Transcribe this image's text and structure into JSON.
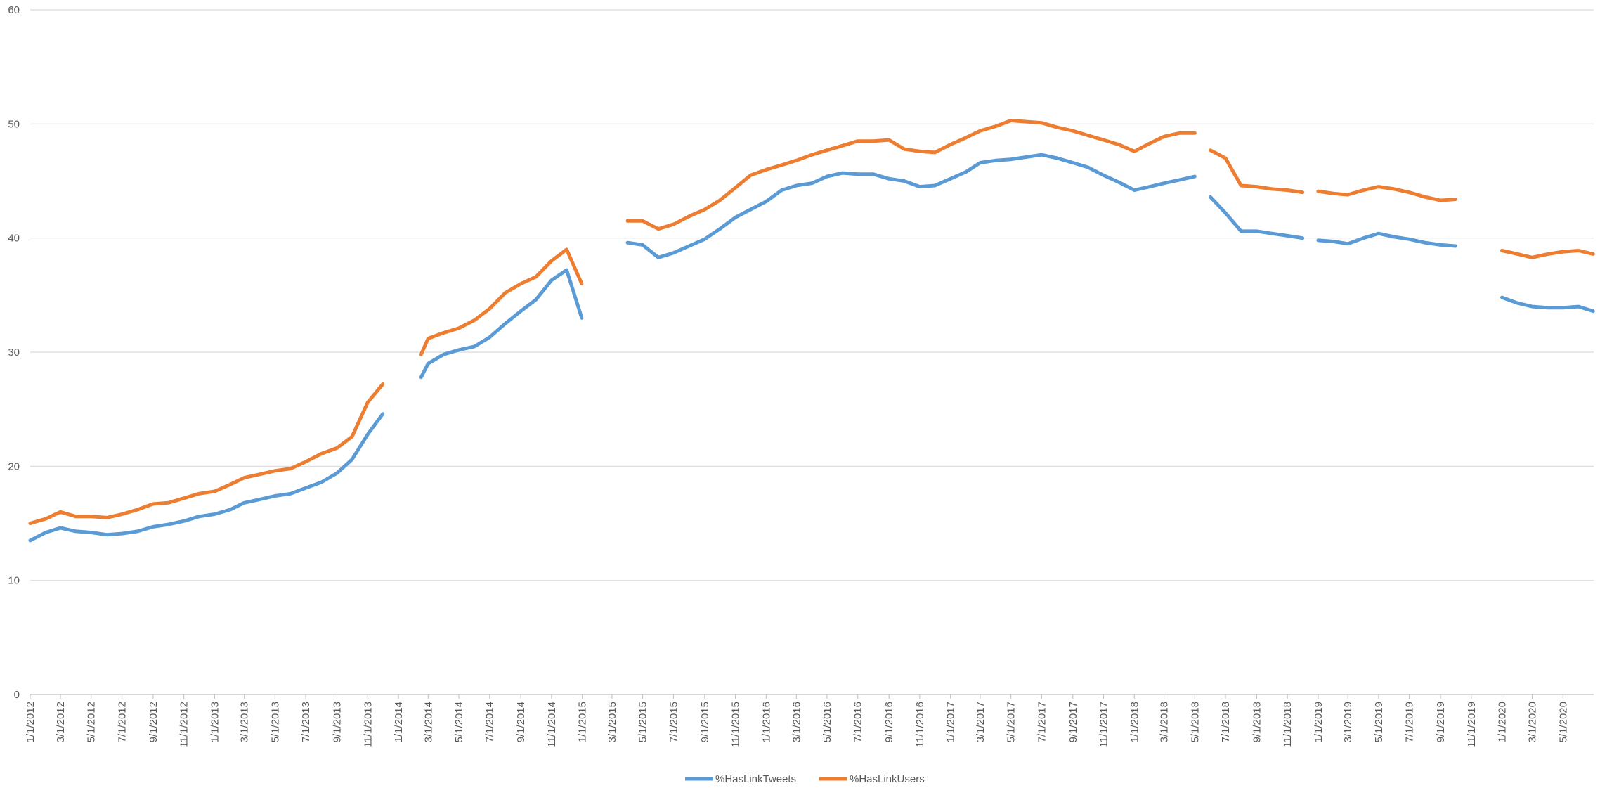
{
  "chart_data": {
    "type": "line",
    "title": "",
    "xlabel": "",
    "ylabel": "",
    "ylim": [
      0,
      60
    ],
    "yticks": [
      0,
      10,
      20,
      30,
      40,
      50,
      60
    ],
    "grid": "horizontal",
    "legend_position": "bottom-center",
    "x_tick_labels": [
      "1/1/2012",
      "3/1/2012",
      "5/1/2012",
      "7/1/2012",
      "9/1/2012",
      "11/1/2012",
      "1/1/2013",
      "3/1/2013",
      "5/1/2013",
      "7/1/2013",
      "9/1/2013",
      "11/1/2013",
      "1/1/2014",
      "3/1/2014",
      "5/1/2014",
      "7/1/2014",
      "9/1/2014",
      "11/1/2014",
      "1/1/2015",
      "3/1/2015",
      "5/1/2015",
      "7/1/2015",
      "9/1/2015",
      "11/1/2015",
      "1/1/2016",
      "3/1/2016",
      "5/1/2016",
      "7/1/2016",
      "9/1/2016",
      "11/1/2016",
      "1/1/2017",
      "3/1/2017",
      "5/1/2017",
      "7/1/2017",
      "9/1/2017",
      "11/1/2017",
      "1/1/2018",
      "3/1/2018",
      "5/1/2018",
      "7/1/2018",
      "9/1/2018",
      "11/1/2018",
      "1/1/2019",
      "3/1/2019",
      "5/1/2019",
      "7/1/2019",
      "9/1/2019",
      "11/1/2019",
      "1/1/2020",
      "3/1/2020",
      "5/1/2020"
    ],
    "series": [
      {
        "name": "%HasLinkTweets",
        "color": "#5B9BD5",
        "x": [
          "1/1/2012",
          "2/1/2012",
          "3/1/2012",
          "4/1/2012",
          "5/1/2012",
          "6/1/2012",
          "7/1/2012",
          "8/1/2012",
          "9/1/2012",
          "10/1/2012",
          "11/1/2012",
          "12/1/2012",
          "1/1/2013",
          "2/1/2013",
          "3/1/2013",
          "4/1/2013",
          "5/1/2013",
          "6/1/2013",
          "7/1/2013",
          "8/1/2013",
          "9/1/2013",
          "10/1/2013",
          "11/1/2013",
          "12/1/2013",
          null,
          "2/15/2014",
          "3/1/2014",
          "4/1/2014",
          "5/1/2014",
          "6/1/2014",
          "7/1/2014",
          "8/1/2014",
          "9/1/2014",
          "10/1/2014",
          "11/1/2014",
          "12/1/2014",
          "12/31/2014",
          null,
          "4/1/2015",
          "5/1/2015",
          "6/1/2015",
          "7/1/2015",
          "8/1/2015",
          "9/1/2015",
          "10/1/2015",
          "11/1/2015",
          "12/1/2015",
          "1/1/2016",
          "2/1/2016",
          "3/1/2016",
          "4/1/2016",
          "5/1/2016",
          "6/1/2016",
          "7/1/2016",
          "8/1/2016",
          "9/1/2016",
          "10/1/2016",
          "11/1/2016",
          "12/1/2016",
          "1/1/2017",
          "2/1/2017",
          "3/1/2017",
          "4/1/2017",
          "5/1/2017",
          "6/1/2017",
          "7/1/2017",
          "8/1/2017",
          "9/1/2017",
          "10/1/2017",
          "11/1/2017",
          "12/1/2017",
          "1/1/2018",
          "2/1/2018",
          "3/1/2018",
          "4/1/2018",
          "5/1/2018",
          null,
          "6/1/2018",
          "7/1/2018",
          "8/1/2018",
          "9/1/2018",
          "10/1/2018",
          "11/1/2018",
          "12/1/2018",
          null,
          "1/1/2019",
          "2/1/2019",
          "3/1/2019",
          "4/1/2019",
          "5/1/2019",
          "6/1/2019",
          "7/1/2019",
          "8/1/2019",
          "9/1/2019",
          "10/1/2019",
          null,
          "1/1/2020",
          "2/1/2020",
          "3/1/2020",
          "4/1/2020",
          "5/1/2020",
          "6/1/2020",
          "6/30/2020"
        ],
        "values": [
          13.5,
          14.2,
          14.6,
          14.3,
          14.2,
          14.0,
          14.1,
          14.3,
          14.7,
          14.9,
          15.2,
          15.6,
          15.8,
          16.2,
          16.8,
          17.1,
          17.4,
          17.6,
          18.1,
          18.6,
          19.4,
          20.6,
          22.8,
          24.6,
          null,
          27.8,
          29.0,
          29.8,
          30.2,
          30.5,
          31.3,
          32.5,
          33.6,
          34.6,
          36.3,
          37.2,
          33.0,
          null,
          39.6,
          39.4,
          38.3,
          38.7,
          39.3,
          39.9,
          40.8,
          41.8,
          42.5,
          43.2,
          44.2,
          44.6,
          44.8,
          45.4,
          45.7,
          45.6,
          45.6,
          45.2,
          45.0,
          44.5,
          44.6,
          45.2,
          45.8,
          46.6,
          46.8,
          46.9,
          47.1,
          47.3,
          47.0,
          46.6,
          46.2,
          45.5,
          44.9,
          44.2,
          44.5,
          44.8,
          45.1,
          45.4,
          null,
          43.6,
          42.2,
          40.6,
          40.6,
          40.4,
          40.2,
          40.0,
          null,
          39.8,
          39.7,
          39.5,
          40.0,
          40.4,
          40.1,
          39.9,
          39.6,
          39.4,
          39.3,
          null,
          34.8,
          34.3,
          34.0,
          33.9,
          33.9,
          34.0,
          33.6
        ]
      },
      {
        "name": "%HasLinkUsers",
        "color": "#ED7D31",
        "x": [
          "1/1/2012",
          "2/1/2012",
          "3/1/2012",
          "4/1/2012",
          "5/1/2012",
          "6/1/2012",
          "7/1/2012",
          "8/1/2012",
          "9/1/2012",
          "10/1/2012",
          "11/1/2012",
          "12/1/2012",
          "1/1/2013",
          "2/1/2013",
          "3/1/2013",
          "4/1/2013",
          "5/1/2013",
          "6/1/2013",
          "7/1/2013",
          "8/1/2013",
          "9/1/2013",
          "10/1/2013",
          "11/1/2013",
          "12/1/2013",
          null,
          "2/15/2014",
          "3/1/2014",
          "4/1/2014",
          "5/1/2014",
          "6/1/2014",
          "7/1/2014",
          "8/1/2014",
          "9/1/2014",
          "10/1/2014",
          "11/1/2014",
          "12/1/2014",
          "12/31/2014",
          null,
          "4/1/2015",
          "5/1/2015",
          "6/1/2015",
          "7/1/2015",
          "8/1/2015",
          "9/1/2015",
          "10/1/2015",
          "11/1/2015",
          "12/1/2015",
          "1/1/2016",
          "2/1/2016",
          "3/1/2016",
          "4/1/2016",
          "5/1/2016",
          "6/1/2016",
          "7/1/2016",
          "8/1/2016",
          "9/1/2016",
          "10/1/2016",
          "11/1/2016",
          "12/1/2016",
          "1/1/2017",
          "2/1/2017",
          "3/1/2017",
          "4/1/2017",
          "5/1/2017",
          "6/1/2017",
          "7/1/2017",
          "8/1/2017",
          "9/1/2017",
          "10/1/2017",
          "11/1/2017",
          "12/1/2017",
          "1/1/2018",
          "2/1/2018",
          "3/1/2018",
          "4/1/2018",
          "5/1/2018",
          null,
          "6/1/2018",
          "7/1/2018",
          "8/1/2018",
          "9/1/2018",
          "10/1/2018",
          "11/1/2018",
          "12/1/2018",
          null,
          "1/1/2019",
          "2/1/2019",
          "3/1/2019",
          "4/1/2019",
          "5/1/2019",
          "6/1/2019",
          "7/1/2019",
          "8/1/2019",
          "9/1/2019",
          "10/1/2019",
          null,
          "1/1/2020",
          "2/1/2020",
          "3/1/2020",
          "4/1/2020",
          "5/1/2020",
          "6/1/2020",
          "6/30/2020"
        ],
        "values": [
          15.0,
          15.4,
          16.0,
          15.6,
          15.6,
          15.5,
          15.8,
          16.2,
          16.7,
          16.8,
          17.2,
          17.6,
          17.8,
          18.4,
          19.0,
          19.3,
          19.6,
          19.8,
          20.4,
          21.1,
          21.6,
          22.6,
          25.6,
          27.2,
          null,
          29.8,
          31.2,
          31.7,
          32.1,
          32.8,
          33.8,
          35.2,
          36.0,
          36.6,
          38.0,
          39.0,
          36.0,
          null,
          41.5,
          41.5,
          40.8,
          41.2,
          41.9,
          42.5,
          43.3,
          44.4,
          45.5,
          46.0,
          46.4,
          46.8,
          47.3,
          47.7,
          48.1,
          48.5,
          48.5,
          48.6,
          47.8,
          47.6,
          47.5,
          48.2,
          48.8,
          49.4,
          49.8,
          50.3,
          50.2,
          50.1,
          49.7,
          49.4,
          49.0,
          48.6,
          48.2,
          47.6,
          48.3,
          48.9,
          49.2,
          49.2,
          null,
          47.7,
          47.0,
          44.6,
          44.5,
          44.3,
          44.2,
          44.0,
          null,
          44.1,
          43.9,
          43.8,
          44.2,
          44.5,
          44.3,
          44.0,
          43.6,
          43.3,
          43.4,
          null,
          38.9,
          38.6,
          38.3,
          38.6,
          38.8,
          38.9,
          38.6
        ]
      }
    ]
  }
}
